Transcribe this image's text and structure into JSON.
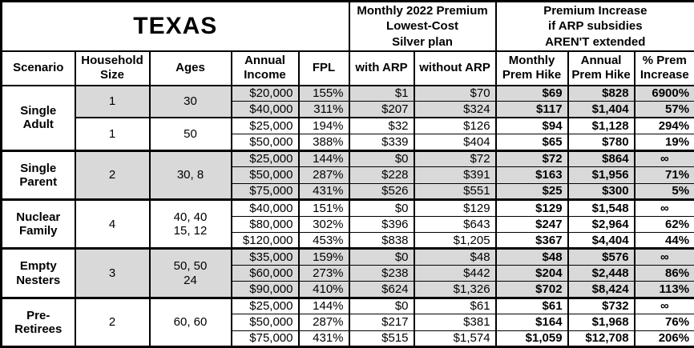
{
  "colors": {
    "shaded_row": "#d9d9d9",
    "border": "#000000",
    "background": "#ffffff",
    "text": "#000000"
  },
  "chart_data": {
    "type": "table",
    "title": "TEXAS",
    "top_headers": {
      "premium": "Monthly 2022 Premium\nLowest-Cost\nSilver plan",
      "increase": "Premium Increase\nif ARP subsidies\nAREN'T extended"
    },
    "columns": [
      "Scenario",
      "Household\nSize",
      "Ages",
      "Annual\nIncome",
      "FPL",
      "with ARP",
      "without ARP",
      "Monthly\nPrem Hike",
      "Annual\nPrem Hike",
      "% Prem\nIncrease"
    ],
    "data_column_keys": [
      "annual_income",
      "fpl",
      "with_arp",
      "without_arp",
      "monthly_prem_hike",
      "annual_prem_hike",
      "pct_prem_increase"
    ],
    "groups": [
      {
        "scenario": "Single Adult",
        "scenario_lines": "Single\nAdult",
        "subgroups": [
          {
            "household_size": "1",
            "ages": "30",
            "shaded": true,
            "rows": [
              [
                "$20,000",
                "155%",
                "$1",
                "$70",
                "$69",
                "$828",
                "6900%"
              ],
              [
                "$40,000",
                "311%",
                "$207",
                "$324",
                "$117",
                "$1,404",
                "57%"
              ]
            ]
          },
          {
            "household_size": "1",
            "ages": "50",
            "shaded": false,
            "rows": [
              [
                "$25,000",
                "194%",
                "$32",
                "$126",
                "$94",
                "$1,128",
                "294%"
              ],
              [
                "$50,000",
                "388%",
                "$339",
                "$404",
                "$65",
                "$780",
                "19%"
              ]
            ]
          }
        ]
      },
      {
        "scenario": "Single Parent",
        "scenario_lines": "Single\nParent",
        "subgroups": [
          {
            "household_size": "2",
            "ages": "30, 8",
            "shaded": true,
            "rows": [
              [
                "$25,000",
                "144%",
                "$0",
                "$72",
                "$72",
                "$864",
                "∞"
              ],
              [
                "$50,000",
                "287%",
                "$228",
                "$391",
                "$163",
                "$1,956",
                "71%"
              ],
              [
                "$75,000",
                "431%",
                "$526",
                "$551",
                "$25",
                "$300",
                "5%"
              ]
            ]
          }
        ]
      },
      {
        "scenario": "Nuclear Family",
        "scenario_lines": "Nuclear\nFamily",
        "subgroups": [
          {
            "household_size": "4",
            "ages": "40, 40\n15, 12",
            "shaded": false,
            "rows": [
              [
                "$40,000",
                "151%",
                "$0",
                "$129",
                "$129",
                "$1,548",
                "∞"
              ],
              [
                "$80,000",
                "302%",
                "$396",
                "$643",
                "$247",
                "$2,964",
                "62%"
              ],
              [
                "$120,000",
                "453%",
                "$838",
                "$1,205",
                "$367",
                "$4,404",
                "44%"
              ]
            ]
          }
        ]
      },
      {
        "scenario": "Empty Nesters",
        "scenario_lines": "Empty\nNesters",
        "subgroups": [
          {
            "household_size": "3",
            "ages": "50, 50\n24",
            "shaded": true,
            "rows": [
              [
                "$35,000",
                "159%",
                "$0",
                "$48",
                "$48",
                "$576",
                "∞"
              ],
              [
                "$60,000",
                "273%",
                "$238",
                "$442",
                "$204",
                "$2,448",
                "86%"
              ],
              [
                "$90,000",
                "410%",
                "$624",
                "$1,326",
                "$702",
                "$8,424",
                "113%"
              ]
            ]
          }
        ]
      },
      {
        "scenario": "Pre-Retirees",
        "scenario_lines": "Pre-\nRetirees",
        "subgroups": [
          {
            "household_size": "2",
            "ages": "60, 60",
            "shaded": false,
            "rows": [
              [
                "$25,000",
                "144%",
                "$0",
                "$61",
                "$61",
                "$732",
                "∞"
              ],
              [
                "$50,000",
                "287%",
                "$217",
                "$381",
                "$164",
                "$1,968",
                "76%"
              ],
              [
                "$75,000",
                "431%",
                "$515",
                "$1,574",
                "$1,059",
                "$12,708",
                "206%"
              ]
            ]
          }
        ]
      }
    ]
  }
}
